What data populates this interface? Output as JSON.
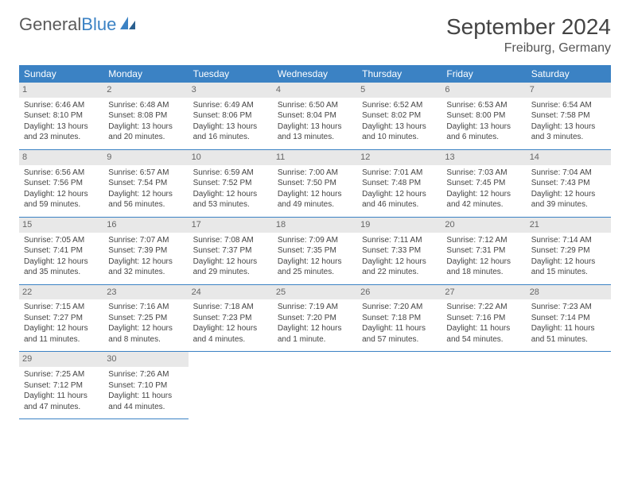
{
  "logo": {
    "text1": "General",
    "text2": "Blue"
  },
  "title": "September 2024",
  "location": "Freiburg, Germany",
  "colors": {
    "header_bg": "#3b82c4",
    "header_text": "#ffffff",
    "daynum_bg": "#e8e8e8",
    "border": "#3b82c4",
    "body_text": "#444444"
  },
  "weekdays": [
    "Sunday",
    "Monday",
    "Tuesday",
    "Wednesday",
    "Thursday",
    "Friday",
    "Saturday"
  ],
  "days": [
    {
      "n": "1",
      "sr": "Sunrise: 6:46 AM",
      "ss": "Sunset: 8:10 PM",
      "dl": "Daylight: 13 hours and 23 minutes."
    },
    {
      "n": "2",
      "sr": "Sunrise: 6:48 AM",
      "ss": "Sunset: 8:08 PM",
      "dl": "Daylight: 13 hours and 20 minutes."
    },
    {
      "n": "3",
      "sr": "Sunrise: 6:49 AM",
      "ss": "Sunset: 8:06 PM",
      "dl": "Daylight: 13 hours and 16 minutes."
    },
    {
      "n": "4",
      "sr": "Sunrise: 6:50 AM",
      "ss": "Sunset: 8:04 PM",
      "dl": "Daylight: 13 hours and 13 minutes."
    },
    {
      "n": "5",
      "sr": "Sunrise: 6:52 AM",
      "ss": "Sunset: 8:02 PM",
      "dl": "Daylight: 13 hours and 10 minutes."
    },
    {
      "n": "6",
      "sr": "Sunrise: 6:53 AM",
      "ss": "Sunset: 8:00 PM",
      "dl": "Daylight: 13 hours and 6 minutes."
    },
    {
      "n": "7",
      "sr": "Sunrise: 6:54 AM",
      "ss": "Sunset: 7:58 PM",
      "dl": "Daylight: 13 hours and 3 minutes."
    },
    {
      "n": "8",
      "sr": "Sunrise: 6:56 AM",
      "ss": "Sunset: 7:56 PM",
      "dl": "Daylight: 12 hours and 59 minutes."
    },
    {
      "n": "9",
      "sr": "Sunrise: 6:57 AM",
      "ss": "Sunset: 7:54 PM",
      "dl": "Daylight: 12 hours and 56 minutes."
    },
    {
      "n": "10",
      "sr": "Sunrise: 6:59 AM",
      "ss": "Sunset: 7:52 PM",
      "dl": "Daylight: 12 hours and 53 minutes."
    },
    {
      "n": "11",
      "sr": "Sunrise: 7:00 AM",
      "ss": "Sunset: 7:50 PM",
      "dl": "Daylight: 12 hours and 49 minutes."
    },
    {
      "n": "12",
      "sr": "Sunrise: 7:01 AM",
      "ss": "Sunset: 7:48 PM",
      "dl": "Daylight: 12 hours and 46 minutes."
    },
    {
      "n": "13",
      "sr": "Sunrise: 7:03 AM",
      "ss": "Sunset: 7:45 PM",
      "dl": "Daylight: 12 hours and 42 minutes."
    },
    {
      "n": "14",
      "sr": "Sunrise: 7:04 AM",
      "ss": "Sunset: 7:43 PM",
      "dl": "Daylight: 12 hours and 39 minutes."
    },
    {
      "n": "15",
      "sr": "Sunrise: 7:05 AM",
      "ss": "Sunset: 7:41 PM",
      "dl": "Daylight: 12 hours and 35 minutes."
    },
    {
      "n": "16",
      "sr": "Sunrise: 7:07 AM",
      "ss": "Sunset: 7:39 PM",
      "dl": "Daylight: 12 hours and 32 minutes."
    },
    {
      "n": "17",
      "sr": "Sunrise: 7:08 AM",
      "ss": "Sunset: 7:37 PM",
      "dl": "Daylight: 12 hours and 29 minutes."
    },
    {
      "n": "18",
      "sr": "Sunrise: 7:09 AM",
      "ss": "Sunset: 7:35 PM",
      "dl": "Daylight: 12 hours and 25 minutes."
    },
    {
      "n": "19",
      "sr": "Sunrise: 7:11 AM",
      "ss": "Sunset: 7:33 PM",
      "dl": "Daylight: 12 hours and 22 minutes."
    },
    {
      "n": "20",
      "sr": "Sunrise: 7:12 AM",
      "ss": "Sunset: 7:31 PM",
      "dl": "Daylight: 12 hours and 18 minutes."
    },
    {
      "n": "21",
      "sr": "Sunrise: 7:14 AM",
      "ss": "Sunset: 7:29 PM",
      "dl": "Daylight: 12 hours and 15 minutes."
    },
    {
      "n": "22",
      "sr": "Sunrise: 7:15 AM",
      "ss": "Sunset: 7:27 PM",
      "dl": "Daylight: 12 hours and 11 minutes."
    },
    {
      "n": "23",
      "sr": "Sunrise: 7:16 AM",
      "ss": "Sunset: 7:25 PM",
      "dl": "Daylight: 12 hours and 8 minutes."
    },
    {
      "n": "24",
      "sr": "Sunrise: 7:18 AM",
      "ss": "Sunset: 7:23 PM",
      "dl": "Daylight: 12 hours and 4 minutes."
    },
    {
      "n": "25",
      "sr": "Sunrise: 7:19 AM",
      "ss": "Sunset: 7:20 PM",
      "dl": "Daylight: 12 hours and 1 minute."
    },
    {
      "n": "26",
      "sr": "Sunrise: 7:20 AM",
      "ss": "Sunset: 7:18 PM",
      "dl": "Daylight: 11 hours and 57 minutes."
    },
    {
      "n": "27",
      "sr": "Sunrise: 7:22 AM",
      "ss": "Sunset: 7:16 PM",
      "dl": "Daylight: 11 hours and 54 minutes."
    },
    {
      "n": "28",
      "sr": "Sunrise: 7:23 AM",
      "ss": "Sunset: 7:14 PM",
      "dl": "Daylight: 11 hours and 51 minutes."
    },
    {
      "n": "29",
      "sr": "Sunrise: 7:25 AM",
      "ss": "Sunset: 7:12 PM",
      "dl": "Daylight: 11 hours and 47 minutes."
    },
    {
      "n": "30",
      "sr": "Sunrise: 7:26 AM",
      "ss": "Sunset: 7:10 PM",
      "dl": "Daylight: 11 hours and 44 minutes."
    }
  ]
}
